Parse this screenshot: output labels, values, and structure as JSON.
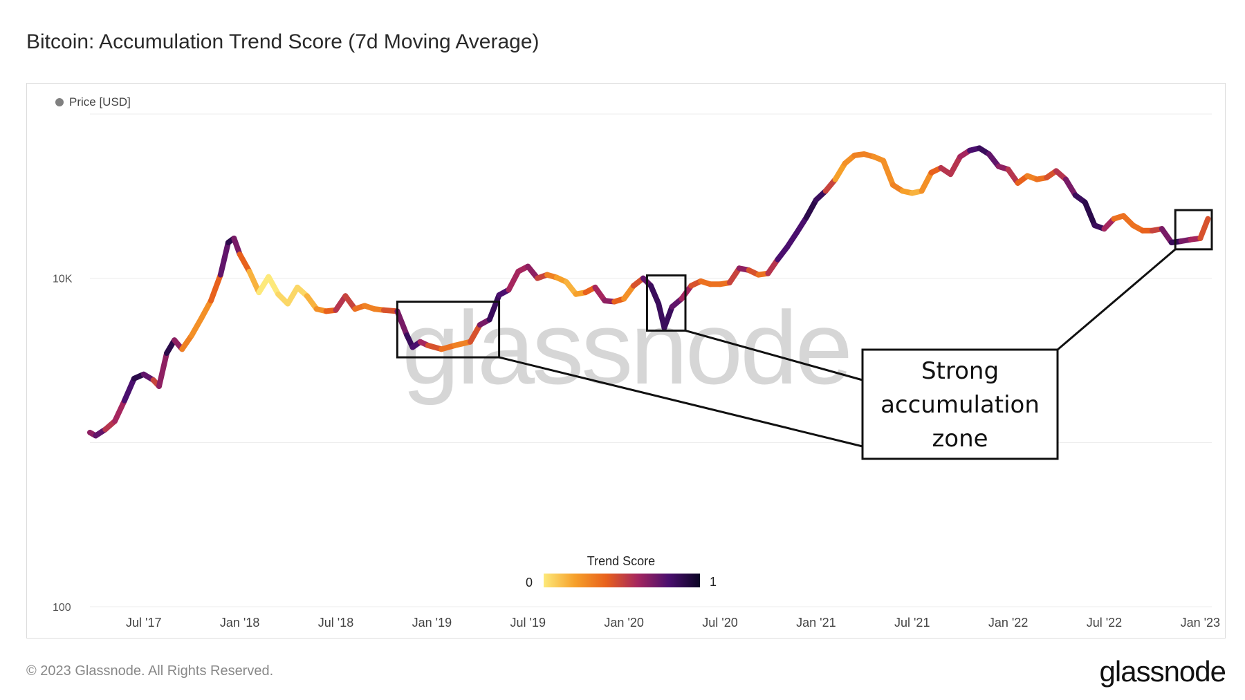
{
  "header": {
    "title": "Bitcoin: Accumulation Trend Score (7d Moving Average)"
  },
  "legend": {
    "series_label": "Price [USD]",
    "series_color": "#808080"
  },
  "colorbar": {
    "title": "Trend Score",
    "min_label": "0",
    "max_label": "1",
    "stops": [
      "#fde97a",
      "#f6a02a",
      "#e8611c",
      "#a5265e",
      "#4a0f6e",
      "#0b0525"
    ]
  },
  "watermark": "glassnode",
  "annotation": {
    "lines": [
      "Strong",
      "accumulation",
      "zone"
    ]
  },
  "footer": {
    "copyright": "© 2023 Glassnode. All Rights Reserved.",
    "brand": "glassnode"
  },
  "chart_data": {
    "type": "line",
    "title": "Bitcoin: Accumulation Trend Score (7d Moving Average)",
    "xlabel": "",
    "ylabel": "Price [USD]",
    "y_scale": "log",
    "ylim": [
      100,
      100000
    ],
    "y_ticks": [
      {
        "value": 100,
        "label": "100"
      },
      {
        "value": 10000,
        "label": "10K"
      }
    ],
    "y_gridlines": [
      100,
      1000,
      10000,
      100000
    ],
    "x_ticks": [
      {
        "t": 2017.5,
        "label": "Jul '17"
      },
      {
        "t": 2018.0,
        "label": "Jan '18"
      },
      {
        "t": 2018.5,
        "label": "Jul '18"
      },
      {
        "t": 2019.0,
        "label": "Jan '19"
      },
      {
        "t": 2019.5,
        "label": "Jul '19"
      },
      {
        "t": 2020.0,
        "label": "Jan '20"
      },
      {
        "t": 2020.5,
        "label": "Jul '20"
      },
      {
        "t": 2021.0,
        "label": "Jan '21"
      },
      {
        "t": 2021.5,
        "label": "Jul '21"
      },
      {
        "t": 2022.0,
        "label": "Jan '22"
      },
      {
        "t": 2022.5,
        "label": "Jul '22"
      },
      {
        "t": 2023.0,
        "label": "Jan '23"
      }
    ],
    "xlim": [
      2017.22,
      2023.06
    ],
    "series": [
      {
        "name": "Price [USD]",
        "points": [
          [
            2017.22,
            1150,
            0.4
          ],
          [
            2017.25,
            1100,
            0.9
          ],
          [
            2017.3,
            1200,
            0.6
          ],
          [
            2017.35,
            1350,
            0.5
          ],
          [
            2017.4,
            1800,
            0.7
          ],
          [
            2017.45,
            2450,
            0.9
          ],
          [
            2017.5,
            2600,
            0.9
          ],
          [
            2017.55,
            2400,
            0.6
          ],
          [
            2017.58,
            2200,
            0.4
          ],
          [
            2017.62,
            3500,
            0.9
          ],
          [
            2017.66,
            4200,
            0.9
          ],
          [
            2017.7,
            3700,
            0.4
          ],
          [
            2017.75,
            4500,
            0.2
          ],
          [
            2017.8,
            5700,
            0.3
          ],
          [
            2017.85,
            7300,
            0.2
          ],
          [
            2017.9,
            10500,
            0.6
          ],
          [
            2017.94,
            16500,
            0.9
          ],
          [
            2017.97,
            17500,
            0.9
          ],
          [
            2018.0,
            14000,
            0.5
          ],
          [
            2018.05,
            11000,
            0.3
          ],
          [
            2018.1,
            8200,
            0.0
          ],
          [
            2018.15,
            10200,
            0.0
          ],
          [
            2018.2,
            8000,
            0.0
          ],
          [
            2018.25,
            7000,
            0.1
          ],
          [
            2018.3,
            8800,
            0.0
          ],
          [
            2018.35,
            7800,
            0.1
          ],
          [
            2018.4,
            6500,
            0.2
          ],
          [
            2018.45,
            6300,
            0.3
          ],
          [
            2018.5,
            6400,
            0.5
          ],
          [
            2018.55,
            7800,
            0.6
          ],
          [
            2018.6,
            6500,
            0.4
          ],
          [
            2018.65,
            6800,
            0.3
          ],
          [
            2018.7,
            6500,
            0.3
          ],
          [
            2018.75,
            6400,
            0.3
          ],
          [
            2018.82,
            6300,
            0.6
          ],
          [
            2018.87,
            4500,
            0.8
          ],
          [
            2018.9,
            3800,
            0.9
          ],
          [
            2018.94,
            4100,
            0.7
          ],
          [
            2018.98,
            3900,
            0.5
          ],
          [
            2019.05,
            3700,
            0.4
          ],
          [
            2019.12,
            3900,
            0.3
          ],
          [
            2019.2,
            4100,
            0.3
          ],
          [
            2019.25,
            5200,
            0.6
          ],
          [
            2019.3,
            5600,
            0.8
          ],
          [
            2019.35,
            7900,
            0.9
          ],
          [
            2019.4,
            8500,
            0.7
          ],
          [
            2019.45,
            11000,
            0.5
          ],
          [
            2019.5,
            11800,
            0.7
          ],
          [
            2019.55,
            10000,
            0.6
          ],
          [
            2019.6,
            10500,
            0.4
          ],
          [
            2019.65,
            10100,
            0.2
          ],
          [
            2019.7,
            9500,
            0.2
          ],
          [
            2019.75,
            8000,
            0.1
          ],
          [
            2019.8,
            8200,
            0.3
          ],
          [
            2019.85,
            8800,
            0.5
          ],
          [
            2019.9,
            7300,
            0.7
          ],
          [
            2019.95,
            7200,
            0.6
          ],
          [
            2020.0,
            7500,
            0.2
          ],
          [
            2020.05,
            9000,
            0.3
          ],
          [
            2020.1,
            10000,
            0.6
          ],
          [
            2020.14,
            9000,
            0.9
          ],
          [
            2020.18,
            7000,
            0.8
          ],
          [
            2020.21,
            5000,
            0.9
          ],
          [
            2020.25,
            6700,
            0.8
          ],
          [
            2020.3,
            7500,
            0.7
          ],
          [
            2020.35,
            9000,
            0.5
          ],
          [
            2020.4,
            9600,
            0.4
          ],
          [
            2020.45,
            9200,
            0.3
          ],
          [
            2020.5,
            9200,
            0.4
          ],
          [
            2020.55,
            9400,
            0.3
          ],
          [
            2020.6,
            11500,
            0.7
          ],
          [
            2020.65,
            11200,
            0.6
          ],
          [
            2020.7,
            10500,
            0.3
          ],
          [
            2020.75,
            10700,
            0.4
          ],
          [
            2020.8,
            13000,
            0.7
          ],
          [
            2020.85,
            15500,
            0.9
          ],
          [
            2020.9,
            19000,
            0.7
          ],
          [
            2020.95,
            23500,
            0.9
          ],
          [
            2021.0,
            30000,
            0.9
          ],
          [
            2021.05,
            34000,
            0.8
          ],
          [
            2021.1,
            40000,
            0.2
          ],
          [
            2021.15,
            50000,
            0.2
          ],
          [
            2021.2,
            56000,
            0.3
          ],
          [
            2021.25,
            57000,
            0.3
          ],
          [
            2021.3,
            55000,
            0.3
          ],
          [
            2021.35,
            52000,
            0.2
          ],
          [
            2021.4,
            37000,
            0.3
          ],
          [
            2021.45,
            34000,
            0.3
          ],
          [
            2021.5,
            33000,
            0.1
          ],
          [
            2021.55,
            34000,
            0.2
          ],
          [
            2021.6,
            44000,
            0.3
          ],
          [
            2021.65,
            47000,
            0.5
          ],
          [
            2021.7,
            43000,
            0.6
          ],
          [
            2021.75,
            55000,
            0.5
          ],
          [
            2021.8,
            60000,
            0.7
          ],
          [
            2021.85,
            62000,
            0.9
          ],
          [
            2021.9,
            57000,
            0.8
          ],
          [
            2021.95,
            48000,
            0.7
          ],
          [
            2022.0,
            46000,
            0.6
          ],
          [
            2022.05,
            38000,
            0.5
          ],
          [
            2022.1,
            42000,
            0.3
          ],
          [
            2022.15,
            40000,
            0.3
          ],
          [
            2022.2,
            41000,
            0.4
          ],
          [
            2022.25,
            45000,
            0.5
          ],
          [
            2022.3,
            40000,
            0.6
          ],
          [
            2022.35,
            32000,
            0.8
          ],
          [
            2022.4,
            29000,
            0.9
          ],
          [
            2022.45,
            21000,
            0.9
          ],
          [
            2022.5,
            20000,
            0.8
          ],
          [
            2022.55,
            23000,
            0.4
          ],
          [
            2022.6,
            24000,
            0.3
          ],
          [
            2022.65,
            21000,
            0.4
          ],
          [
            2022.7,
            19500,
            0.3
          ],
          [
            2022.75,
            19500,
            0.5
          ],
          [
            2022.8,
            20000,
            0.5
          ],
          [
            2022.85,
            16500,
            0.9
          ],
          [
            2022.9,
            16800,
            0.8
          ],
          [
            2022.95,
            17200,
            0.6
          ],
          [
            2023.0,
            17500,
            0.6
          ],
          [
            2023.04,
            23000,
            0.3
          ]
        ]
      }
    ],
    "annotation_boxes": [
      {
        "t0": 2018.82,
        "t1": 2019.35,
        "y0": 3300,
        "y1": 7200
      },
      {
        "t0": 2020.12,
        "t1": 2020.32,
        "y0": 4800,
        "y1": 10400
      },
      {
        "t0": 2022.87,
        "t1": 2023.06,
        "y0": 15000,
        "y1": 26000
      }
    ]
  }
}
